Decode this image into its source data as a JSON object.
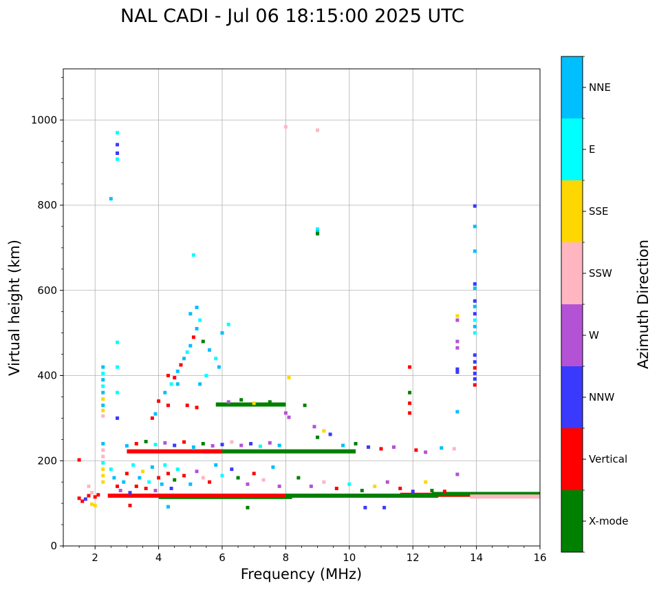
{
  "chart_data": {
    "type": "scatter",
    "title": "NAL CADI - Jul 06 18:15:00 2025 UTC",
    "xlabel": "Frequency (MHz)",
    "ylabel": "Virtual height (km)",
    "xlim": [
      1,
      16
    ],
    "ylim": [
      0,
      1120
    ],
    "xticks": [
      2,
      4,
      6,
      8,
      10,
      12,
      14,
      16
    ],
    "yticks": [
      0,
      200,
      400,
      600,
      800,
      1000
    ],
    "grid": true,
    "colorbar": {
      "label": "Azimuth Direction",
      "categories": [
        {
          "name": "X-mode",
          "color": "#008000"
        },
        {
          "name": "Vertical",
          "color": "#ff0000"
        },
        {
          "name": "NNW",
          "color": "#3a3aff"
        },
        {
          "name": "W",
          "color": "#b452d6"
        },
        {
          "name": "SSW",
          "color": "#ffb6c1"
        },
        {
          "name": "SSE",
          "color": "#ffd700"
        },
        {
          "name": "E",
          "color": "#00ffff"
        },
        {
          "name": "NNE",
          "color": "#00bfff"
        }
      ]
    },
    "segments": [
      {
        "cat": "Vertical",
        "x": [
          11.6,
          16.0
        ],
        "y": 120
      },
      {
        "cat": "X-mode",
        "x": [
          8.0,
          12.8
        ],
        "y": 118
      },
      {
        "cat": "X-mode",
        "x": [
          12.6,
          16.0
        ],
        "y": 122
      },
      {
        "cat": "SSW",
        "x": [
          13.8,
          16.0
        ],
        "y": 116
      },
      {
        "cat": "X-mode",
        "x": [
          4.0,
          8.2
        ],
        "y": 115
      },
      {
        "cat": "Vertical",
        "x": [
          2.4,
          8.0
        ],
        "y": 118
      },
      {
        "cat": "X-mode",
        "x": [
          5.4,
          10.2
        ],
        "y": 222
      },
      {
        "cat": "Vertical",
        "x": [
          3.0,
          6.0
        ],
        "y": 222
      },
      {
        "cat": "X-mode",
        "x": [
          5.8,
          8.0
        ],
        "y": 332
      }
    ],
    "points": [
      {
        "x": 2.25,
        "y": 420,
        "cat": "NNE"
      },
      {
        "x": 2.25,
        "y": 405,
        "cat": "E"
      },
      {
        "x": 2.25,
        "y": 390,
        "cat": "NNE"
      },
      {
        "x": 2.25,
        "y": 375,
        "cat": "E"
      },
      {
        "x": 2.25,
        "y": 360,
        "cat": "NNE"
      },
      {
        "x": 2.25,
        "y": 345,
        "cat": "SSE"
      },
      {
        "x": 2.25,
        "y": 330,
        "cat": "NNE"
      },
      {
        "x": 2.25,
        "y": 318,
        "cat": "SSE"
      },
      {
        "x": 2.25,
        "y": 305,
        "cat": "SSW"
      },
      {
        "x": 2.25,
        "y": 240,
        "cat": "NNE"
      },
      {
        "x": 2.25,
        "y": 225,
        "cat": "SSW"
      },
      {
        "x": 2.25,
        "y": 210,
        "cat": "SSW"
      },
      {
        "x": 2.25,
        "y": 195,
        "cat": "E"
      },
      {
        "x": 2.25,
        "y": 180,
        "cat": "SSE"
      },
      {
        "x": 2.25,
        "y": 165,
        "cat": "SSE"
      },
      {
        "x": 2.25,
        "y": 150,
        "cat": "SSE"
      },
      {
        "x": 2.7,
        "y": 970,
        "cat": "E"
      },
      {
        "x": 2.7,
        "y": 942,
        "cat": "NNW"
      },
      {
        "x": 2.7,
        "y": 922,
        "cat": "NNW"
      },
      {
        "x": 2.7,
        "y": 908,
        "cat": "E"
      },
      {
        "x": 2.5,
        "y": 815,
        "cat": "NNE"
      },
      {
        "x": 2.7,
        "y": 478,
        "cat": "E"
      },
      {
        "x": 2.7,
        "y": 420,
        "cat": "E"
      },
      {
        "x": 2.7,
        "y": 360,
        "cat": "E"
      },
      {
        "x": 2.7,
        "y": 300,
        "cat": "NNW"
      },
      {
        "x": 1.5,
        "y": 202,
        "cat": "Vertical"
      },
      {
        "x": 1.5,
        "y": 112,
        "cat": "Vertical"
      },
      {
        "x": 1.6,
        "y": 105,
        "cat": "Vertical"
      },
      {
        "x": 1.7,
        "y": 110,
        "cat": "NNW"
      },
      {
        "x": 1.8,
        "y": 118,
        "cat": "Vertical"
      },
      {
        "x": 1.9,
        "y": 125,
        "cat": "SSW"
      },
      {
        "x": 1.9,
        "y": 98,
        "cat": "SSE"
      },
      {
        "x": 2.0,
        "y": 115,
        "cat": "Vertical"
      },
      {
        "x": 2.1,
        "y": 120,
        "cat": "Vertical"
      },
      {
        "x": 1.8,
        "y": 140,
        "cat": "SSW"
      },
      {
        "x": 2.5,
        "y": 180,
        "cat": "E"
      },
      {
        "x": 2.6,
        "y": 160,
        "cat": "NNE"
      },
      {
        "x": 2.7,
        "y": 140,
        "cat": "Vertical"
      },
      {
        "x": 2.8,
        "y": 130,
        "cat": "W"
      },
      {
        "x": 2.9,
        "y": 150,
        "cat": "NNE"
      },
      {
        "x": 3.0,
        "y": 170,
        "cat": "Vertical"
      },
      {
        "x": 3.1,
        "y": 125,
        "cat": "NNW"
      },
      {
        "x": 3.2,
        "y": 190,
        "cat": "E"
      },
      {
        "x": 3.3,
        "y": 140,
        "cat": "Vertical"
      },
      {
        "x": 3.4,
        "y": 160,
        "cat": "NNE"
      },
      {
        "x": 3.5,
        "y": 175,
        "cat": "SSE"
      },
      {
        "x": 3.6,
        "y": 135,
        "cat": "Vertical"
      },
      {
        "x": 3.7,
        "y": 150,
        "cat": "E"
      },
      {
        "x": 3.8,
        "y": 185,
        "cat": "NNE"
      },
      {
        "x": 3.9,
        "y": 130,
        "cat": "W"
      },
      {
        "x": 4.0,
        "y": 160,
        "cat": "Vertical"
      },
      {
        "x": 4.1,
        "y": 145,
        "cat": "NNE"
      },
      {
        "x": 4.2,
        "y": 190,
        "cat": "E"
      },
      {
        "x": 4.3,
        "y": 170,
        "cat": "Vertical"
      },
      {
        "x": 4.4,
        "y": 135,
        "cat": "NNW"
      },
      {
        "x": 4.5,
        "y": 155,
        "cat": "X-mode"
      },
      {
        "x": 4.6,
        "y": 180,
        "cat": "E"
      },
      {
        "x": 4.8,
        "y": 165,
        "cat": "Vertical"
      },
      {
        "x": 5.0,
        "y": 145,
        "cat": "NNE"
      },
      {
        "x": 5.2,
        "y": 175,
        "cat": "W"
      },
      {
        "x": 5.4,
        "y": 160,
        "cat": "SSW"
      },
      {
        "x": 5.6,
        "y": 150,
        "cat": "Vertical"
      },
      {
        "x": 5.8,
        "y": 190,
        "cat": "NNE"
      },
      {
        "x": 6.0,
        "y": 165,
        "cat": "E"
      },
      {
        "x": 6.3,
        "y": 180,
        "cat": "NNW"
      },
      {
        "x": 6.5,
        "y": 160,
        "cat": "X-mode"
      },
      {
        "x": 6.8,
        "y": 145,
        "cat": "W"
      },
      {
        "x": 7.0,
        "y": 170,
        "cat": "Vertical"
      },
      {
        "x": 7.3,
        "y": 155,
        "cat": "SSW"
      },
      {
        "x": 7.6,
        "y": 185,
        "cat": "NNE"
      },
      {
        "x": 7.8,
        "y": 140,
        "cat": "W"
      },
      {
        "x": 3.0,
        "y": 235,
        "cat": "NNE"
      },
      {
        "x": 3.3,
        "y": 240,
        "cat": "Vertical"
      },
      {
        "x": 3.6,
        "y": 245,
        "cat": "X-mode"
      },
      {
        "x": 3.9,
        "y": 238,
        "cat": "E"
      },
      {
        "x": 4.2,
        "y": 242,
        "cat": "W"
      },
      {
        "x": 4.5,
        "y": 236,
        "cat": "NNW"
      },
      {
        "x": 4.8,
        "y": 244,
        "cat": "Vertical"
      },
      {
        "x": 5.1,
        "y": 232,
        "cat": "NNE"
      },
      {
        "x": 5.4,
        "y": 240,
        "cat": "X-mode"
      },
      {
        "x": 5.7,
        "y": 235,
        "cat": "W"
      },
      {
        "x": 6.0,
        "y": 238,
        "cat": "NNW"
      },
      {
        "x": 6.3,
        "y": 244,
        "cat": "SSW"
      },
      {
        "x": 6.6,
        "y": 236,
        "cat": "W"
      },
      {
        "x": 6.9,
        "y": 240,
        "cat": "NNW"
      },
      {
        "x": 7.2,
        "y": 234,
        "cat": "E"
      },
      {
        "x": 7.5,
        "y": 242,
        "cat": "W"
      },
      {
        "x": 7.8,
        "y": 236,
        "cat": "NNE"
      },
      {
        "x": 3.8,
        "y": 300,
        "cat": "Vertical"
      },
      {
        "x": 3.9,
        "y": 310,
        "cat": "NNE"
      },
      {
        "x": 4.0,
        "y": 340,
        "cat": "Vertical"
      },
      {
        "x": 4.2,
        "y": 360,
        "cat": "NNE"
      },
      {
        "x": 4.3,
        "y": 330,
        "cat": "Vertical"
      },
      {
        "x": 4.4,
        "y": 380,
        "cat": "E"
      },
      {
        "x": 4.5,
        "y": 395,
        "cat": "Vertical"
      },
      {
        "x": 4.6,
        "y": 410,
        "cat": "NNE"
      },
      {
        "x": 4.7,
        "y": 425,
        "cat": "Vertical"
      },
      {
        "x": 4.8,
        "y": 440,
        "cat": "NNE"
      },
      {
        "x": 4.9,
        "y": 455,
        "cat": "E"
      },
      {
        "x": 5.0,
        "y": 470,
        "cat": "NNE"
      },
      {
        "x": 5.1,
        "y": 490,
        "cat": "Vertical"
      },
      {
        "x": 5.2,
        "y": 510,
        "cat": "NNE"
      },
      {
        "x": 5.3,
        "y": 530,
        "cat": "E"
      },
      {
        "x": 5.2,
        "y": 560,
        "cat": "NNE"
      },
      {
        "x": 5.0,
        "y": 545,
        "cat": "NNE"
      },
      {
        "x": 5.4,
        "y": 480,
        "cat": "X-mode"
      },
      {
        "x": 5.6,
        "y": 460,
        "cat": "NNE"
      },
      {
        "x": 5.8,
        "y": 440,
        "cat": "E"
      },
      {
        "x": 5.9,
        "y": 420,
        "cat": "NNE"
      },
      {
        "x": 5.1,
        "y": 683,
        "cat": "E"
      },
      {
        "x": 4.6,
        "y": 380,
        "cat": "NNE"
      },
      {
        "x": 4.3,
        "y": 400,
        "cat": "Vertical"
      },
      {
        "x": 5.3,
        "y": 380,
        "cat": "NNE"
      },
      {
        "x": 5.5,
        "y": 400,
        "cat": "E"
      },
      {
        "x": 6.2,
        "y": 520,
        "cat": "E"
      },
      {
        "x": 6.0,
        "y": 500,
        "cat": "NNE"
      },
      {
        "x": 4.9,
        "y": 330,
        "cat": "Vertical"
      },
      {
        "x": 5.2,
        "y": 325,
        "cat": "Vertical"
      },
      {
        "x": 6.2,
        "y": 338,
        "cat": "W"
      },
      {
        "x": 6.6,
        "y": 343,
        "cat": "X-mode"
      },
      {
        "x": 7.0,
        "y": 335,
        "cat": "SSE"
      },
      {
        "x": 7.5,
        "y": 338,
        "cat": "X-mode"
      },
      {
        "x": 8.0,
        "y": 984,
        "cat": "SSW"
      },
      {
        "x": 9.0,
        "y": 976,
        "cat": "SSW"
      },
      {
        "x": 9.0,
        "y": 744,
        "cat": "E"
      },
      {
        "x": 9.0,
        "y": 738,
        "cat": "NNE"
      },
      {
        "x": 9.0,
        "y": 733,
        "cat": "X-mode"
      },
      {
        "x": 8.1,
        "y": 395,
        "cat": "SSE"
      },
      {
        "x": 8.0,
        "y": 312,
        "cat": "W"
      },
      {
        "x": 8.1,
        "y": 302,
        "cat": "W"
      },
      {
        "x": 8.6,
        "y": 330,
        "cat": "X-mode"
      },
      {
        "x": 8.9,
        "y": 280,
        "cat": "W"
      },
      {
        "x": 9.2,
        "y": 270,
        "cat": "SSE"
      },
      {
        "x": 9.0,
        "y": 255,
        "cat": "X-mode"
      },
      {
        "x": 9.4,
        "y": 262,
        "cat": "NNW"
      },
      {
        "x": 9.8,
        "y": 236,
        "cat": "NNE"
      },
      {
        "x": 10.2,
        "y": 240,
        "cat": "X-mode"
      },
      {
        "x": 10.6,
        "y": 232,
        "cat": "NNW"
      },
      {
        "x": 11.0,
        "y": 228,
        "cat": "Vertical"
      },
      {
        "x": 11.4,
        "y": 232,
        "cat": "W"
      },
      {
        "x": 12.1,
        "y": 225,
        "cat": "Vertical"
      },
      {
        "x": 12.4,
        "y": 220,
        "cat": "W"
      },
      {
        "x": 12.9,
        "y": 230,
        "cat": "NNE"
      },
      {
        "x": 13.3,
        "y": 228,
        "cat": "SSW"
      },
      {
        "x": 8.4,
        "y": 160,
        "cat": "X-mode"
      },
      {
        "x": 8.8,
        "y": 140,
        "cat": "W"
      },
      {
        "x": 9.2,
        "y": 150,
        "cat": "SSW"
      },
      {
        "x": 9.6,
        "y": 135,
        "cat": "Vertical"
      },
      {
        "x": 10.0,
        "y": 145,
        "cat": "E"
      },
      {
        "x": 10.4,
        "y": 130,
        "cat": "X-mode"
      },
      {
        "x": 10.8,
        "y": 140,
        "cat": "SSE"
      },
      {
        "x": 11.2,
        "y": 150,
        "cat": "W"
      },
      {
        "x": 11.6,
        "y": 135,
        "cat": "Vertical"
      },
      {
        "x": 12.0,
        "y": 128,
        "cat": "NNW"
      },
      {
        "x": 12.4,
        "y": 150,
        "cat": "SSE"
      },
      {
        "x": 12.6,
        "y": 130,
        "cat": "X-mode"
      },
      {
        "x": 13.0,
        "y": 128,
        "cat": "Vertical"
      },
      {
        "x": 13.4,
        "y": 168,
        "cat": "W"
      },
      {
        "x": 11.9,
        "y": 420,
        "cat": "Vertical"
      },
      {
        "x": 11.9,
        "y": 360,
        "cat": "X-mode"
      },
      {
        "x": 11.9,
        "y": 335,
        "cat": "Vertical"
      },
      {
        "x": 11.9,
        "y": 312,
        "cat": "Vertical"
      },
      {
        "x": 13.4,
        "y": 540,
        "cat": "SSE"
      },
      {
        "x": 13.4,
        "y": 530,
        "cat": "W"
      },
      {
        "x": 13.4,
        "y": 480,
        "cat": "W"
      },
      {
        "x": 13.4,
        "y": 465,
        "cat": "W"
      },
      {
        "x": 13.4,
        "y": 415,
        "cat": "NNW"
      },
      {
        "x": 13.4,
        "y": 408,
        "cat": "NNW"
      },
      {
        "x": 13.4,
        "y": 315,
        "cat": "NNE"
      },
      {
        "x": 13.95,
        "y": 798,
        "cat": "NNW"
      },
      {
        "x": 13.95,
        "y": 750,
        "cat": "NNE"
      },
      {
        "x": 13.95,
        "y": 692,
        "cat": "NNE"
      },
      {
        "x": 13.95,
        "y": 615,
        "cat": "NNW"
      },
      {
        "x": 13.95,
        "y": 605,
        "cat": "NNE"
      },
      {
        "x": 13.95,
        "y": 575,
        "cat": "NNW"
      },
      {
        "x": 13.95,
        "y": 562,
        "cat": "NNE"
      },
      {
        "x": 13.95,
        "y": 545,
        "cat": "NNW"
      },
      {
        "x": 13.95,
        "y": 530,
        "cat": "E"
      },
      {
        "x": 13.95,
        "y": 515,
        "cat": "NNE"
      },
      {
        "x": 13.95,
        "y": 500,
        "cat": "E"
      },
      {
        "x": 13.95,
        "y": 448,
        "cat": "NNW"
      },
      {
        "x": 13.95,
        "y": 432,
        "cat": "NNW"
      },
      {
        "x": 13.95,
        "y": 418,
        "cat": "Vertical"
      },
      {
        "x": 13.95,
        "y": 405,
        "cat": "NNW"
      },
      {
        "x": 13.95,
        "y": 392,
        "cat": "NNW"
      },
      {
        "x": 13.95,
        "y": 378,
        "cat": "Vertical"
      },
      {
        "x": 6.8,
        "y": 90,
        "cat": "X-mode"
      },
      {
        "x": 10.5,
        "y": 90,
        "cat": "NNW"
      },
      {
        "x": 11.1,
        "y": 90,
        "cat": "NNW"
      },
      {
        "x": 4.3,
        "y": 92,
        "cat": "NNE"
      },
      {
        "x": 3.1,
        "y": 95,
        "cat": "Vertical"
      },
      {
        "x": 2.0,
        "y": 95,
        "cat": "SSE"
      }
    ]
  }
}
